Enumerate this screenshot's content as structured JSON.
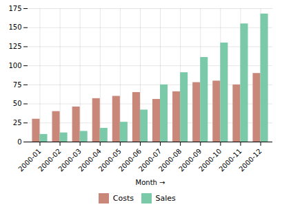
{
  "chart_data": {
    "type": "bar",
    "categories": [
      "2000-01",
      "2000-02",
      "2000-03",
      "2000-04",
      "2000-05",
      "2000-06",
      "2000-07",
      "2000-08",
      "2000-09",
      "2000-10",
      "2000-11",
      "2000-12"
    ],
    "xlabel": "Month",
    "series": [
      {
        "name": "Costs",
        "color": "#c9877a",
        "values": [
          30,
          40,
          46,
          57,
          60,
          65,
          56,
          66,
          78,
          80,
          75,
          90
        ]
      },
      {
        "name": "Sales",
        "color": "#7ac9a8",
        "values": [
          10,
          12,
          14,
          18,
          26,
          42,
          75,
          91,
          111,
          130,
          155,
          168
        ]
      }
    ],
    "ylim": [
      0,
      175
    ],
    "yticks": [
      0,
      25,
      50,
      75,
      100,
      125,
      150,
      175
    ],
    "grid": true,
    "legend": "bottom"
  }
}
